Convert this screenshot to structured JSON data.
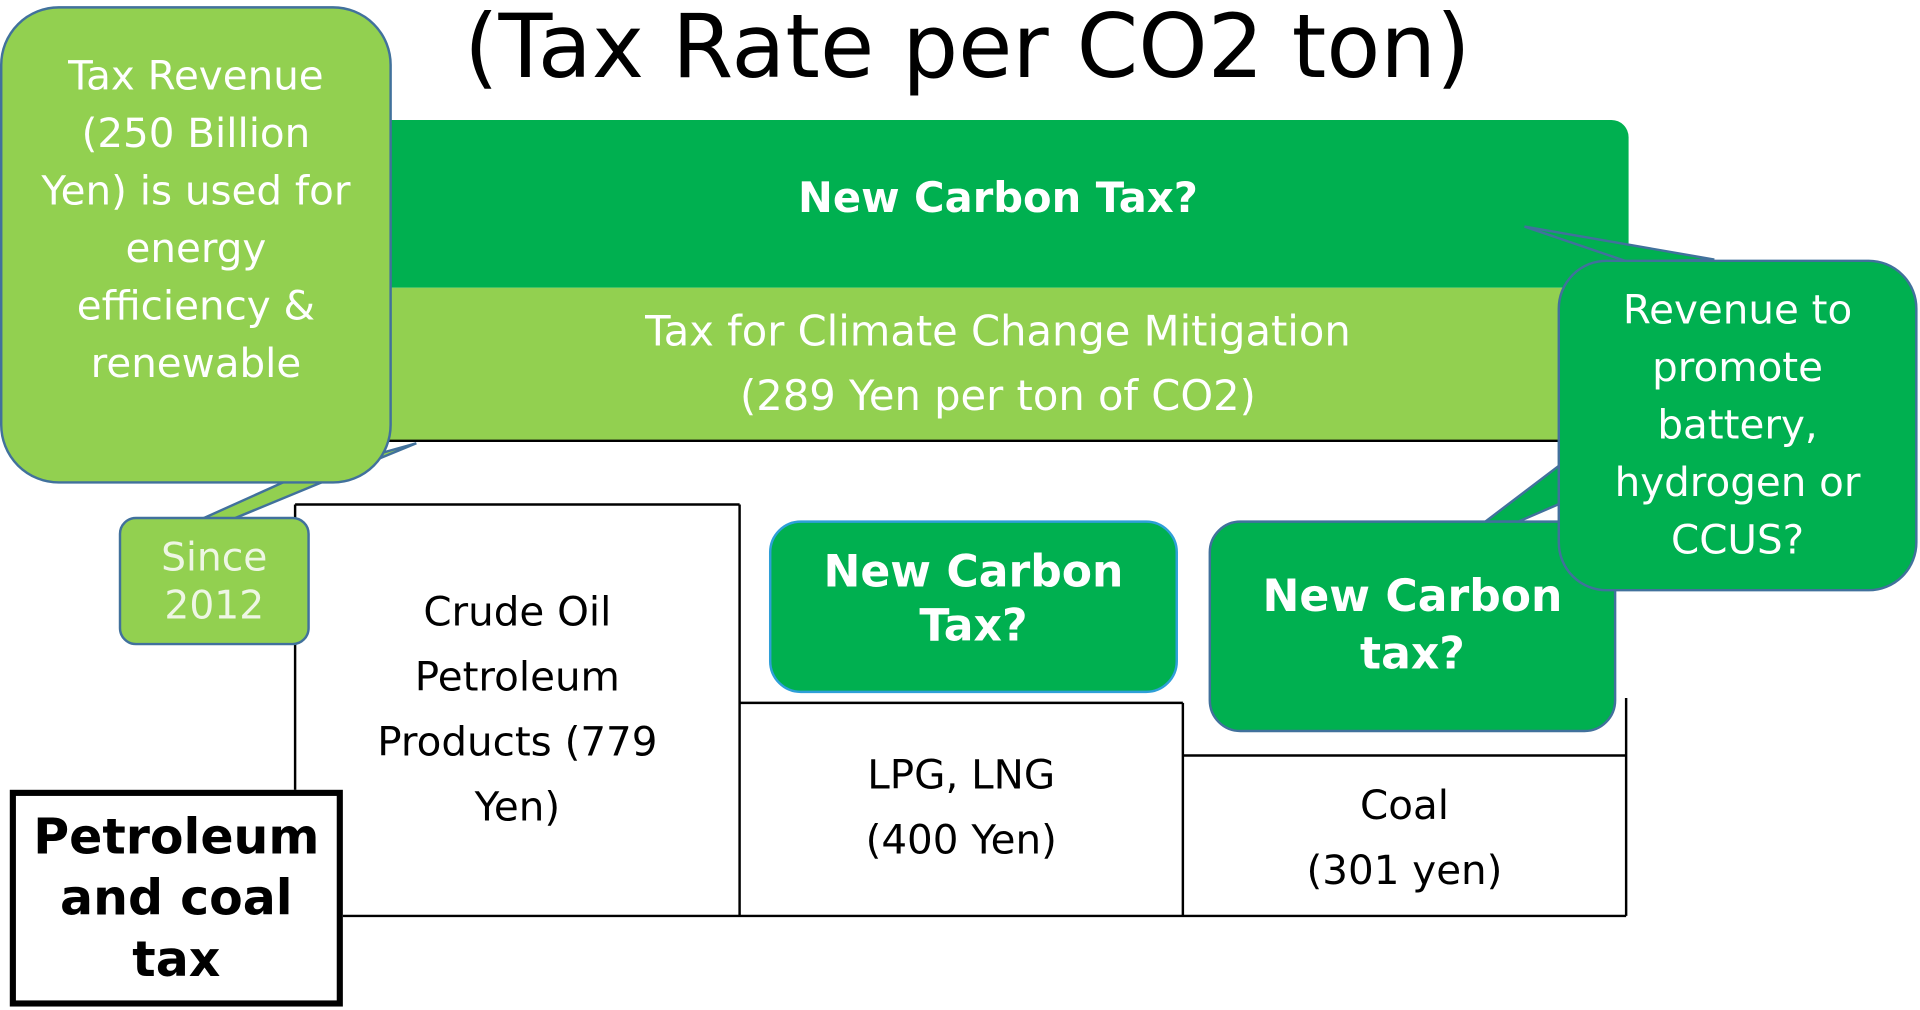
{
  "title": "(Tax Rate per CO2 ton)",
  "top_bar": {
    "label": "New Carbon Tax?"
  },
  "climate_tax": {
    "line1": "Tax for Climate Change Mitigation",
    "line2": "(289 Yen per ton of CO2)"
  },
  "callout_left": "Tax Revenue (250 Billion Yen) is used for energy efficiency & renewable",
  "since": "Since 2012",
  "crude": "Crude Oil Petroleum Products (779 Yen)",
  "lpg": {
    "line1": "LPG, LNG",
    "line2": "(400 Yen)"
  },
  "coal": {
    "line1": "Coal",
    "line2": "(301 yen)"
  },
  "new_tax_mid": "New Carbon Tax?",
  "new_tax_right": "New Carbon tax?",
  "callout_right": "Revenue to promote battery, hydrogen or CCUS?",
  "tax_label": "Petroleum and coal tax"
}
